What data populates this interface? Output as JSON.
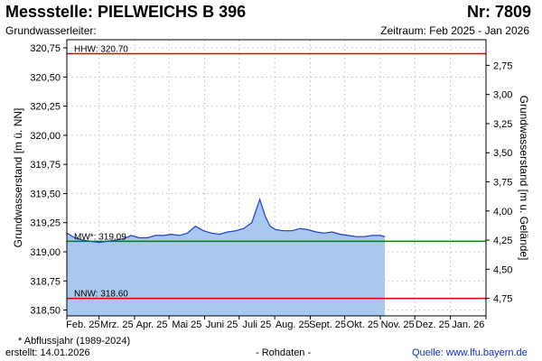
{
  "header": {
    "title": "Messstelle: PIELWEICHS B 396",
    "number": "Nr: 7809",
    "subtitle": "Grundwasserleiter:",
    "period": "Zeitraum: Feb 2025 - Jan 2026"
  },
  "footer": {
    "note": "* Abflussjahr (1989-2024)",
    "created": "erstellt:  14.01.2026",
    "raw": "- Rohdaten -",
    "source": "Quelle: www.lfu.bayern.de"
  },
  "chart_data": {
    "type": "area",
    "ylabel": "Grundwasserstand [m ü. NN]",
    "y2label": "Grundwasserstand [m u. Gelände]",
    "ylim": [
      318.45,
      320.82
    ],
    "y_ticks": [
      "320,75",
      "320,50",
      "320,25",
      "320,00",
      "319,75",
      "319,50",
      "319,25",
      "319,00",
      "318,75",
      "318,50"
    ],
    "y_tick_values": [
      320.75,
      320.5,
      320.25,
      320.0,
      319.75,
      319.5,
      319.25,
      319.0,
      318.75,
      318.5
    ],
    "y2_ticks": [
      "2,75",
      "3,00",
      "3,25",
      "3,50",
      "3,75",
      "4,00",
      "4,25",
      "4,50",
      "4,75"
    ],
    "y2_tick_values": [
      2.75,
      3.0,
      3.25,
      3.5,
      3.75,
      4.0,
      4.25,
      4.5,
      4.75
    ],
    "y2_reference_level": 323.35,
    "x_tick_labels": [
      "Feb. 25",
      "Mrz. 25",
      "Apr. 25",
      "Mai 25",
      "Juni 25",
      "Juli 25",
      "Aug. 25",
      "Sept. 25",
      "Okt. 25",
      "Nov. 25",
      "Dez. 25",
      "Jan. 26"
    ],
    "x_range": [
      "2025-02-01",
      "2026-01-31"
    ],
    "grid": true,
    "reference_lines": [
      {
        "label": "HHW: 320.70",
        "value": 320.7,
        "color": "#e00000"
      },
      {
        "label": "MW*: 319.09",
        "value": 319.09,
        "color": "#008000"
      },
      {
        "label": "NNW: 318.60",
        "value": 318.6,
        "color": "#e00000"
      }
    ],
    "series": [
      {
        "line_color": "#1f3fd0",
        "fill_color": "#a8c8f0",
        "x": [
          "2025-02-01",
          "2025-02-08",
          "2025-02-15",
          "2025-02-22",
          "2025-03-01",
          "2025-03-08",
          "2025-03-15",
          "2025-03-22",
          "2025-03-29",
          "2025-04-05",
          "2025-04-12",
          "2025-04-19",
          "2025-04-26",
          "2025-05-03",
          "2025-05-10",
          "2025-05-17",
          "2025-05-24",
          "2025-05-31",
          "2025-06-07",
          "2025-06-14",
          "2025-06-21",
          "2025-06-28",
          "2025-07-05",
          "2025-07-12",
          "2025-07-19",
          "2025-07-24",
          "2025-07-28",
          "2025-08-02",
          "2025-08-09",
          "2025-08-16",
          "2025-08-23",
          "2025-08-30",
          "2025-09-06",
          "2025-09-13",
          "2025-09-20",
          "2025-09-27",
          "2025-10-04",
          "2025-10-11",
          "2025-10-18",
          "2025-10-25",
          "2025-11-01",
          "2025-11-05"
        ],
        "y": [
          319.16,
          319.12,
          319.1,
          319.09,
          319.08,
          319.09,
          319.1,
          319.11,
          319.14,
          319.12,
          319.12,
          319.14,
          319.14,
          319.15,
          319.14,
          319.16,
          319.22,
          319.18,
          319.16,
          319.15,
          319.17,
          319.18,
          319.2,
          319.25,
          319.45,
          319.3,
          319.22,
          319.19,
          319.18,
          319.18,
          319.2,
          319.19,
          319.17,
          319.16,
          319.17,
          319.15,
          319.14,
          319.13,
          319.13,
          319.14,
          319.14,
          319.13
        ]
      }
    ]
  }
}
